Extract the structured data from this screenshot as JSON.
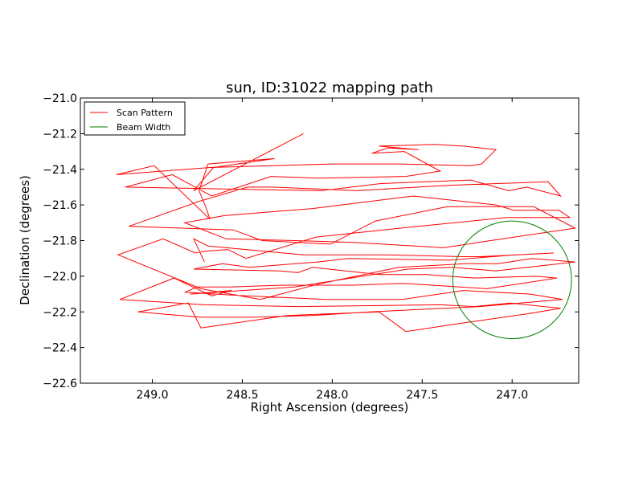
{
  "chart_data": {
    "type": "line",
    "title": "sun, ID:31022 mapping path",
    "xlabel": "Right Ascension (degrees)",
    "ylabel": "Declination (degrees)",
    "x_inverted": true,
    "xlim": [
      249.4,
      246.63
    ],
    "ylim": [
      -22.6,
      -21.0
    ],
    "xticks": [
      "249.0",
      "248.5",
      "248.0",
      "247.5",
      "247.0"
    ],
    "xtick_values": [
      249.0,
      248.5,
      248.0,
      247.5,
      247.0
    ],
    "yticks": [
      "−21.0",
      "−21.2",
      "−21.4",
      "−21.6",
      "−21.8",
      "−22.0",
      "−22.2",
      "−22.4",
      "−22.6"
    ],
    "ytick_values": [
      -21.0,
      -21.2,
      -21.4,
      -21.6,
      -21.8,
      -22.0,
      -22.2,
      -22.4,
      -22.6
    ],
    "grid": false,
    "legend_position": "upper-left",
    "series": [
      {
        "name": "Scan Pattern",
        "color": "#ff0000",
        "x": [
          248.16,
          248.77,
          248.66,
          248.32,
          248.69,
          248.74,
          248.7,
          248.68,
          248.99,
          249.2,
          248.68,
          248.0,
          247.63,
          247.23,
          247.17,
          247.09,
          247.27,
          247.43,
          247.74,
          247.52,
          247.69,
          247.78,
          247.6,
          247.4,
          247.59,
          248.07,
          248.34,
          248.67,
          248.89,
          249.15,
          248.06,
          247.73,
          247.23,
          247.02,
          246.92,
          246.73,
          246.8,
          247.36,
          247.86,
          248.33,
          248.47,
          248.74,
          249.13,
          248.55,
          248.39,
          248.01,
          247.76,
          247.36,
          246.88,
          246.65,
          247.12,
          247.38,
          247.88,
          248.21,
          248.59,
          248.82,
          248.6,
          248.11,
          247.55,
          247.09,
          246.99,
          246.74,
          246.68,
          247.03,
          247.62,
          248.09,
          248.48,
          248.58,
          248.71,
          248.76,
          248.94,
          249.19,
          248.73,
          248.4,
          248.06,
          247.63,
          247.26,
          247.08,
          246.89,
          246.65,
          247.09,
          247.33,
          247.58,
          248.21,
          248.79,
          248.56,
          248.67,
          248.88,
          249.18,
          248.71,
          248.19,
          247.4,
          247.21,
          247.01,
          246.73,
          246.91,
          247.26,
          247.59,
          247.74,
          248.25,
          248.73,
          248.8,
          249.08,
          248.73,
          248.44,
          248.11,
          247.79,
          247.18,
          246.72,
          246.9,
          247.27,
          247.61,
          248.03,
          248.48,
          248.82,
          248.75,
          248.57,
          248.28,
          247.88,
          247.61,
          247.14,
          246.75,
          246.87,
          247.21,
          247.48,
          247.74,
          248.11,
          248.19,
          248.29,
          248.77,
          248.61,
          248.46,
          248.08,
          247.91,
          247.35,
          246.98,
          246.77,
          247.18,
          247.27,
          247.7,
          248.16,
          248.69,
          248.77,
          248.71
        ],
        "y": [
          -21.2,
          -21.52,
          -21.39,
          -21.34,
          -21.37,
          -21.52,
          -21.62,
          -21.68,
          -21.38,
          -21.43,
          -21.39,
          -21.37,
          -21.37,
          -21.38,
          -21.37,
          -21.29,
          -21.27,
          -21.26,
          -21.27,
          -21.29,
          -21.28,
          -21.31,
          -21.3,
          -21.41,
          -21.44,
          -21.45,
          -21.44,
          -21.55,
          -21.43,
          -21.5,
          -21.52,
          -21.48,
          -21.46,
          -21.52,
          -21.5,
          -21.55,
          -21.47,
          -21.49,
          -21.52,
          -21.5,
          -21.5,
          -21.58,
          -21.72,
          -21.74,
          -21.8,
          -21.82,
          -21.69,
          -21.61,
          -21.61,
          -21.73,
          -21.8,
          -21.84,
          -21.81,
          -21.8,
          -21.79,
          -21.7,
          -21.66,
          -21.62,
          -21.55,
          -21.6,
          -21.63,
          -21.63,
          -21.67,
          -21.67,
          -21.73,
          -21.78,
          -21.9,
          -21.85,
          -21.86,
          -21.87,
          -21.79,
          -21.88,
          -22.07,
          -22.13,
          -22.04,
          -21.95,
          -21.93,
          -21.93,
          -21.9,
          -21.92,
          -21.97,
          -21.95,
          -21.96,
          -22.06,
          -22.1,
          -22.08,
          -22.11,
          -22.01,
          -22.13,
          -22.16,
          -22.17,
          -22.16,
          -22.17,
          -22.15,
          -22.18,
          -22.21,
          -22.26,
          -22.31,
          -22.2,
          -22.22,
          -22.29,
          -22.15,
          -22.2,
          -22.23,
          -22.23,
          -22.22,
          -22.2,
          -22.17,
          -22.13,
          -22.1,
          -22.08,
          -22.13,
          -22.13,
          -22.11,
          -22.09,
          -22.06,
          -22.06,
          -22.05,
          -22.05,
          -22.04,
          -22.07,
          -22.01,
          -22.0,
          -22.01,
          -21.99,
          -21.99,
          -21.95,
          -21.98,
          -21.97,
          -21.96,
          -21.93,
          -21.95,
          -21.92,
          -21.9,
          -21.91,
          -21.88,
          -21.87,
          -21.89,
          -21.89,
          -21.88,
          -21.88,
          -21.83,
          -21.79,
          -21.92
        ]
      },
      {
        "name": "Beam Width",
        "color": "#008000",
        "type": "circle",
        "center_x": 247.0,
        "center_y": -22.02,
        "radius_deg": 0.33
      }
    ]
  }
}
